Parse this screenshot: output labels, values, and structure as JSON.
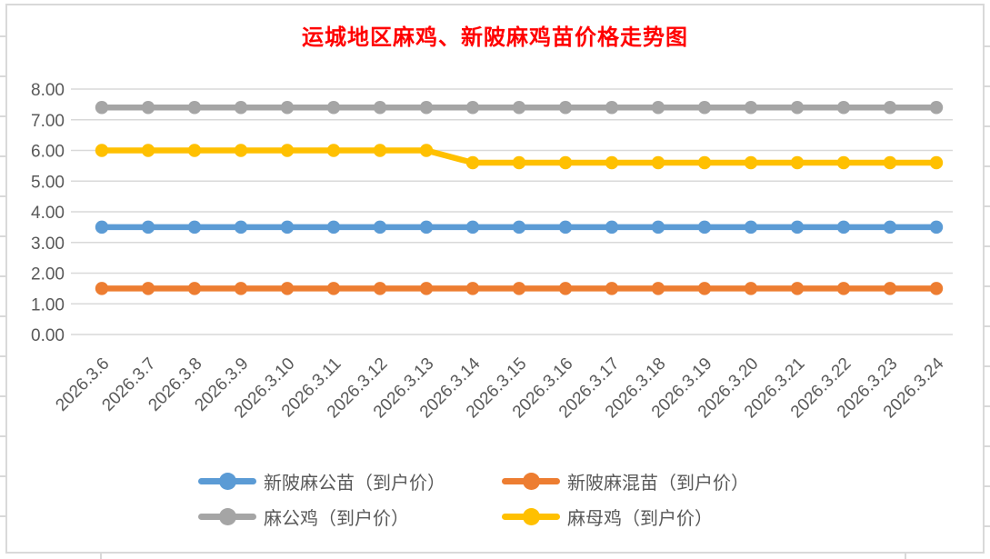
{
  "title": {
    "text": "运城地区麻鸡、新陂麻鸡苗价格走势图",
    "color": "#FF0000"
  },
  "chart_data": {
    "type": "line",
    "title": "运城地区麻鸡、新陂麻鸡苗价格走势图",
    "x_labels": [
      "2026.3.6",
      "2026.3.7",
      "2026.3.8",
      "2026.3.9",
      "2026.3.10",
      "2026.3.11",
      "2026.3.12",
      "2026.3.13",
      "2026.3.14",
      "2026.3.15",
      "2026.3.16",
      "2026.3.17",
      "2026.3.18",
      "2026.3.19",
      "2026.3.20",
      "2026.3.21",
      "2026.3.22",
      "2026.3.23",
      "2026.3.24"
    ],
    "y_tick_labels": [
      "0.00",
      "1.00",
      "2.00",
      "3.00",
      "4.00",
      "5.00",
      "6.00",
      "7.00",
      "8.00"
    ],
    "ylim": [
      0,
      8
    ],
    "ytick_step": 1,
    "grid": true,
    "gridline_color": "#D9D9D9",
    "axis_text_color": "#595959",
    "legend_position": "bottom",
    "legend_rows": [
      [
        0,
        1
      ],
      [
        2,
        3
      ]
    ],
    "series": [
      {
        "name": "新陂麻公苗（到户价）",
        "color": "#5B9BD5",
        "values": [
          3.5,
          3.5,
          3.5,
          3.5,
          3.5,
          3.5,
          3.5,
          3.5,
          3.5,
          3.5,
          3.5,
          3.5,
          3.5,
          3.5,
          3.5,
          3.5,
          3.5,
          3.5,
          3.5
        ]
      },
      {
        "name": "新陂麻混苗（到户价）",
        "color": "#ED7D31",
        "values": [
          1.5,
          1.5,
          1.5,
          1.5,
          1.5,
          1.5,
          1.5,
          1.5,
          1.5,
          1.5,
          1.5,
          1.5,
          1.5,
          1.5,
          1.5,
          1.5,
          1.5,
          1.5,
          1.5
        ]
      },
      {
        "name": "麻公鸡（到户价）",
        "color": "#A5A5A5",
        "values": [
          7.4,
          7.4,
          7.4,
          7.4,
          7.4,
          7.4,
          7.4,
          7.4,
          7.4,
          7.4,
          7.4,
          7.4,
          7.4,
          7.4,
          7.4,
          7.4,
          7.4,
          7.4,
          7.4
        ]
      },
      {
        "name": "麻母鸡（到户价）",
        "color": "#FFC000",
        "values": [
          6.0,
          6.0,
          6.0,
          6.0,
          6.0,
          6.0,
          6.0,
          6.0,
          5.6,
          5.6,
          5.6,
          5.6,
          5.6,
          5.6,
          5.6,
          5.6,
          5.6,
          5.6,
          5.6
        ]
      }
    ]
  }
}
